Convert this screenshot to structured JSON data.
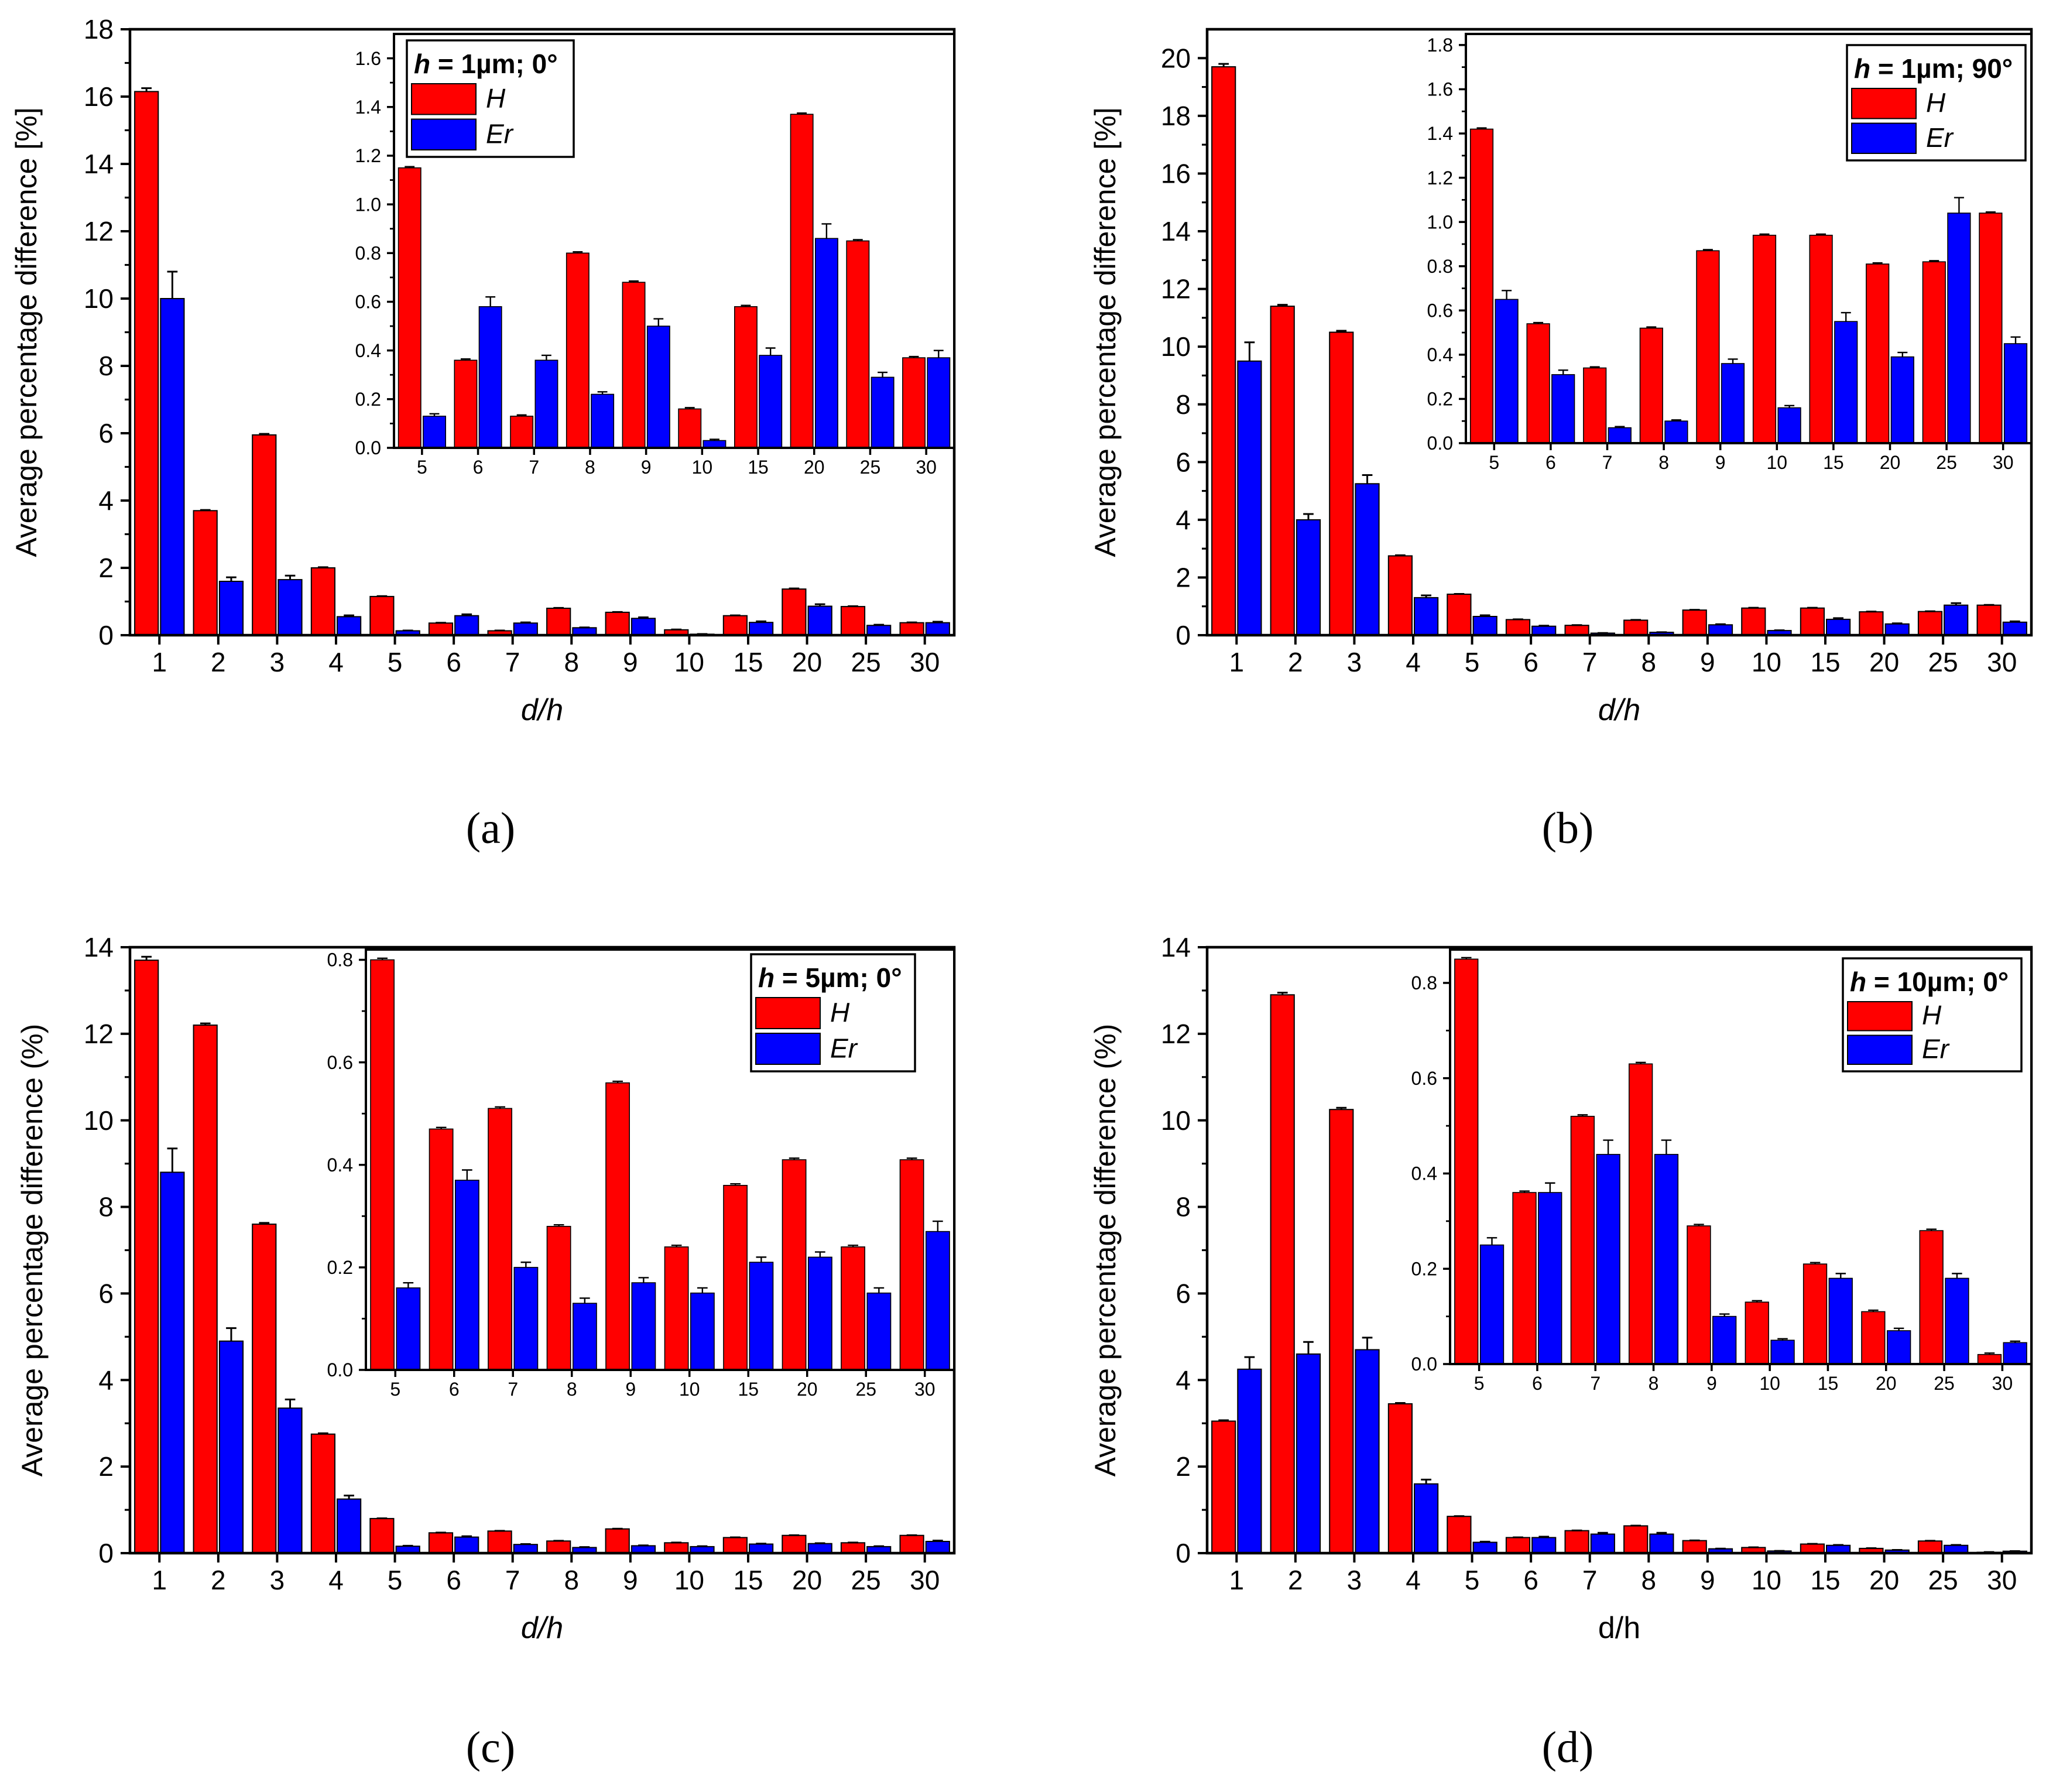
{
  "series_colors": {
    "H": "#ff0000",
    "Er": "#0000ff"
  },
  "chart_data": [
    {
      "panel": "a",
      "type": "bar",
      "caption": "(a)",
      "title": "h = 1µm; 0°",
      "xlabel": "d/h",
      "ylabel": "Average percentage difference [%]",
      "categories": [
        "1",
        "2",
        "3",
        "4",
        "5",
        "6",
        "7",
        "8",
        "9",
        "10",
        "15",
        "20",
        "25",
        "30"
      ],
      "ylim": [
        0,
        18
      ],
      "yticks": [
        0,
        2,
        4,
        6,
        8,
        10,
        12,
        14,
        16,
        18
      ],
      "series": [
        {
          "name": "H",
          "values": [
            16.15,
            3.7,
            5.95,
            2.0,
            1.15,
            0.36,
            0.13,
            0.8,
            0.68,
            0.16,
            0.58,
            1.37,
            0.85,
            0.37
          ],
          "errors": [
            0.1,
            0.02,
            0.03,
            0.02,
            0.01,
            0.01,
            0.01,
            0.01,
            0.01,
            0.01,
            0.01,
            0.02,
            0.01,
            0.01
          ]
        },
        {
          "name": "Er",
          "values": [
            10.0,
            1.6,
            1.65,
            0.55,
            0.13,
            0.58,
            0.36,
            0.22,
            0.5,
            0.03,
            0.38,
            0.86,
            0.29,
            0.37
          ],
          "errors": [
            0.8,
            0.12,
            0.12,
            0.04,
            0.01,
            0.04,
            0.02,
            0.01,
            0.03,
            0.005,
            0.03,
            0.06,
            0.02,
            0.03
          ]
        }
      ],
      "inset": {
        "categories": [
          "5",
          "6",
          "7",
          "8",
          "9",
          "10",
          "15",
          "20",
          "25",
          "30"
        ],
        "ylim": [
          0,
          1.7
        ],
        "yticks": [
          "0.0",
          "0.2",
          "0.4",
          "0.6",
          "0.8",
          "1.0",
          "1.2",
          "1.4",
          "1.6"
        ],
        "series": [
          {
            "name": "H",
            "values": [
              1.15,
              0.36,
              0.13,
              0.8,
              0.68,
              0.16,
              0.58,
              1.37,
              0.85,
              0.37
            ],
            "errors": [
              0.005,
              0.005,
              0.005,
              0.005,
              0.005,
              0.005,
              0.005,
              0.005,
              0.005,
              0.005
            ]
          },
          {
            "name": "Er",
            "values": [
              0.13,
              0.58,
              0.36,
              0.22,
              0.5,
              0.03,
              0.38,
              0.86,
              0.29,
              0.37
            ],
            "errors": [
              0.01,
              0.04,
              0.02,
              0.01,
              0.03,
              0.005,
              0.03,
              0.06,
              0.02,
              0.03
            ]
          }
        ]
      }
    },
    {
      "panel": "b",
      "type": "bar",
      "caption": "(b)",
      "title": "h = 1µm; 90°",
      "xlabel": "d/h",
      "ylabel": "Average percentage difference [%]",
      "categories": [
        "1",
        "2",
        "3",
        "4",
        "5",
        "6",
        "7",
        "8",
        "9",
        "10",
        "15",
        "20",
        "25",
        "30"
      ],
      "ylim": [
        0,
        21
      ],
      "yticks": [
        0,
        2,
        4,
        6,
        8,
        10,
        12,
        14,
        16,
        18,
        20
      ],
      "series": [
        {
          "name": "H",
          "values": [
            19.7,
            11.4,
            10.5,
            2.75,
            1.42,
            0.54,
            0.34,
            0.52,
            0.87,
            0.94,
            0.94,
            0.81,
            0.82,
            1.04
          ],
          "errors": [
            0.1,
            0.05,
            0.05,
            0.02,
            0.01,
            0.01,
            0.01,
            0.01,
            0.01,
            0.01,
            0.01,
            0.01,
            0.01,
            0.01
          ]
        },
        {
          "name": "Er",
          "values": [
            9.5,
            4.0,
            5.25,
            1.3,
            0.65,
            0.31,
            0.07,
            0.1,
            0.36,
            0.16,
            0.55,
            0.39,
            1.04,
            0.45
          ],
          "errors": [
            0.65,
            0.2,
            0.3,
            0.08,
            0.04,
            0.02,
            0.005,
            0.005,
            0.02,
            0.01,
            0.04,
            0.02,
            0.07,
            0.03
          ]
        }
      ],
      "inset": {
        "categories": [
          "5",
          "6",
          "7",
          "8",
          "9",
          "10",
          "15",
          "20",
          "25",
          "30"
        ],
        "ylim": [
          0,
          1.85
        ],
        "yticks": [
          "0.0",
          "0.2",
          "0.4",
          "0.6",
          "0.8",
          "1.0",
          "1.2",
          "1.4",
          "1.6",
          "1.8"
        ],
        "series": [
          {
            "name": "H",
            "values": [
              1.42,
              0.54,
              0.34,
              0.52,
              0.87,
              0.94,
              0.94,
              0.81,
              0.82,
              1.04
            ],
            "errors": [
              0.005,
              0.005,
              0.005,
              0.005,
              0.005,
              0.005,
              0.005,
              0.005,
              0.005,
              0.005
            ]
          },
          {
            "name": "Er",
            "values": [
              0.65,
              0.31,
              0.07,
              0.1,
              0.36,
              0.16,
              0.55,
              0.39,
              1.04,
              0.45
            ],
            "errors": [
              0.04,
              0.02,
              0.005,
              0.005,
              0.02,
              0.01,
              0.04,
              0.02,
              0.07,
              0.03
            ]
          }
        ]
      }
    },
    {
      "panel": "c",
      "type": "bar",
      "caption": "(c)",
      "title": "h = 5µm; 0°",
      "xlabel": "d/h",
      "ylabel": "Average percentage difference (%)",
      "categories": [
        "1",
        "2",
        "3",
        "4",
        "5",
        "6",
        "7",
        "8",
        "9",
        "10",
        "15",
        "20",
        "25",
        "30"
      ],
      "ylim": [
        0,
        14
      ],
      "yticks": [
        0,
        2,
        4,
        6,
        8,
        10,
        12,
        14
      ],
      "series": [
        {
          "name": "H",
          "values": [
            13.7,
            12.2,
            7.6,
            2.75,
            0.8,
            0.47,
            0.51,
            0.28,
            0.56,
            0.24,
            0.36,
            0.41,
            0.24,
            0.41
          ],
          "errors": [
            0.08,
            0.04,
            0.03,
            0.02,
            0.005,
            0.005,
            0.005,
            0.005,
            0.005,
            0.005,
            0.005,
            0.005,
            0.005,
            0.005
          ]
        },
        {
          "name": "Er",
          "values": [
            8.8,
            4.9,
            3.35,
            1.25,
            0.16,
            0.37,
            0.2,
            0.13,
            0.17,
            0.15,
            0.21,
            0.22,
            0.15,
            0.27
          ],
          "errors": [
            0.55,
            0.3,
            0.2,
            0.08,
            0.01,
            0.02,
            0.01,
            0.01,
            0.01,
            0.01,
            0.01,
            0.01,
            0.01,
            0.02
          ]
        }
      ],
      "inset": {
        "categories": [
          "5",
          "6",
          "7",
          "8",
          "9",
          "10",
          "15",
          "20",
          "25",
          "30"
        ],
        "ylim": [
          0,
          0.82
        ],
        "yticks": [
          "0.0",
          "0.2",
          "0.4",
          "0.6",
          "0.8"
        ],
        "series": [
          {
            "name": "H",
            "values": [
              0.8,
              0.47,
              0.51,
              0.28,
              0.56,
              0.24,
              0.36,
              0.41,
              0.24,
              0.41
            ],
            "errors": [
              0.003,
              0.003,
              0.003,
              0.003,
              0.003,
              0.003,
              0.003,
              0.003,
              0.003,
              0.003
            ]
          },
          {
            "name": "Er",
            "values": [
              0.16,
              0.37,
              0.2,
              0.13,
              0.17,
              0.15,
              0.21,
              0.22,
              0.15,
              0.27
            ],
            "errors": [
              0.01,
              0.02,
              0.01,
              0.01,
              0.01,
              0.01,
              0.01,
              0.01,
              0.01,
              0.02
            ]
          }
        ]
      }
    },
    {
      "panel": "d",
      "type": "bar",
      "caption": "(d)",
      "title": "h = 10µm; 0°",
      "xlabel": "d/h",
      "ylabel": "Average percentage difference (%)",
      "categories": [
        "1",
        "2",
        "3",
        "4",
        "5",
        "6",
        "7",
        "8",
        "9",
        "10",
        "15",
        "20",
        "25",
        "30"
      ],
      "ylim": [
        0,
        14
      ],
      "yticks": [
        0,
        2,
        4,
        6,
        8,
        10,
        12,
        14
      ],
      "series": [
        {
          "name": "H",
          "values": [
            3.05,
            12.9,
            10.25,
            3.45,
            0.85,
            0.36,
            0.52,
            0.63,
            0.29,
            0.13,
            0.21,
            0.11,
            0.28,
            0.02
          ],
          "errors": [
            0.02,
            0.05,
            0.04,
            0.02,
            0.005,
            0.005,
            0.005,
            0.005,
            0.005,
            0.005,
            0.005,
            0.005,
            0.005,
            0.005
          ]
        },
        {
          "name": "Er",
          "values": [
            4.25,
            4.6,
            4.7,
            1.6,
            0.25,
            0.36,
            0.44,
            0.44,
            0.1,
            0.05,
            0.18,
            0.07,
            0.18,
            0.045
          ],
          "errors": [
            0.28,
            0.28,
            0.28,
            0.1,
            0.015,
            0.02,
            0.03,
            0.03,
            0.005,
            0.003,
            0.01,
            0.005,
            0.01,
            0.003
          ]
        }
      ],
      "inset": {
        "categories": [
          "5",
          "6",
          "7",
          "8",
          "9",
          "10",
          "15",
          "20",
          "25",
          "30"
        ],
        "ylim": [
          0,
          0.87
        ],
        "yticks": [
          "0.0",
          "0.2",
          "0.4",
          "0.6",
          "0.8"
        ],
        "series": [
          {
            "name": "H",
            "values": [
              0.85,
              0.36,
              0.52,
              0.63,
              0.29,
              0.13,
              0.21,
              0.11,
              0.28,
              0.02
            ],
            "errors": [
              0.003,
              0.003,
              0.003,
              0.003,
              0.003,
              0.003,
              0.003,
              0.003,
              0.003,
              0.003
            ]
          },
          {
            "name": "Er",
            "values": [
              0.25,
              0.36,
              0.44,
              0.44,
              0.1,
              0.05,
              0.18,
              0.07,
              0.18,
              0.045
            ],
            "errors": [
              0.015,
              0.02,
              0.03,
              0.03,
              0.005,
              0.003,
              0.01,
              0.005,
              0.01,
              0.003
            ]
          }
        ]
      }
    }
  ]
}
